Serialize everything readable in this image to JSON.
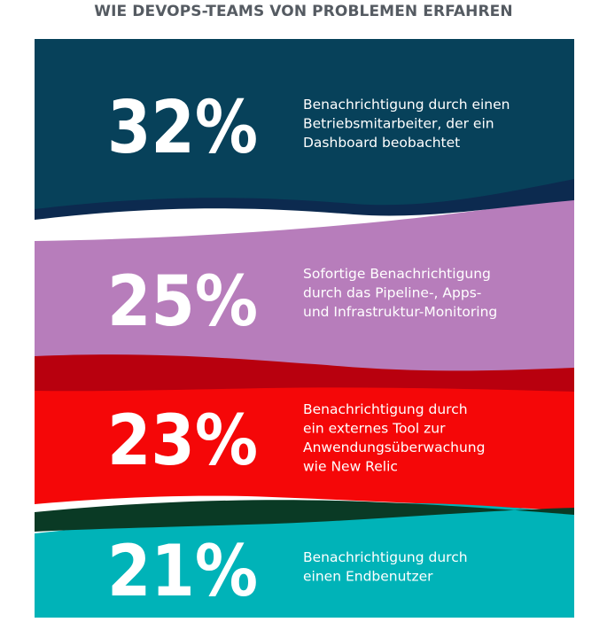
{
  "title": "WIE DEVOPS-TEAMS VON PROBLEMEN ERFAHREN",
  "chart_data": {
    "type": "table",
    "title": "WIE DEVOPS-TEAMS VON PROBLEMEN ERFAHREN",
    "items": [
      {
        "value": 32,
        "label": "32%",
        "lines": [
          "Benachrichtigung durch einen",
          "Betriebsmitarbeiter, der ein",
          "Dashboard beobachtet"
        ],
        "color": "#07415a",
        "accent": "#0c2a4f"
      },
      {
        "value": 25,
        "label": "25%",
        "lines": [
          "Sofortige Benachrichtigung",
          "durch das Pipeline-, Apps-",
          "und Infrastruktur-Monitoring"
        ],
        "color": "#b77dbb",
        "accent": "#b8000e"
      },
      {
        "value": 23,
        "label": "23%",
        "lines": [
          "Benachrichtigung durch",
          "ein externes Tool zur",
          "Anwendungsüberwachung",
          "wie New Relic"
        ],
        "color": "#f50708",
        "accent": "#0a3a25"
      },
      {
        "value": 21,
        "label": "21%",
        "lines": [
          "Benachrichtigung durch",
          "einen Endbenutzer"
        ],
        "color": "#00b3b8",
        "accent": null
      }
    ]
  }
}
